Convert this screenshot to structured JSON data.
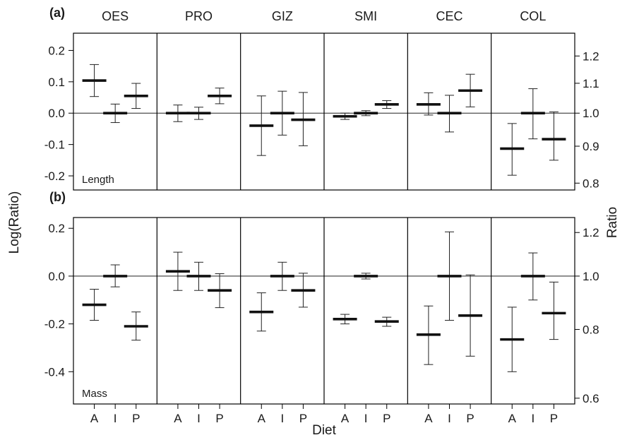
{
  "chart_data": [
    {
      "panel_label": "(a)",
      "type": "errorbar",
      "variable": "Length",
      "groups": [
        "OES",
        "PRO",
        "GIZ",
        "SMI",
        "CEC",
        "COL"
      ],
      "categories": [
        "A",
        "I",
        "P"
      ],
      "ylim": [
        -0.245,
        0.255
      ],
      "y_ticks": [
        "0.2",
        "0.1",
        "0.0",
        "-0.1",
        "-0.2"
      ],
      "y2_ticks": [
        "1.2",
        "1.1",
        "1.0",
        "0.9",
        "0.8"
      ],
      "series": [
        {
          "group": "OES",
          "mean": [
            0.104,
            0.0,
            0.055
          ],
          "lower": [
            0.053,
            -0.03,
            0.015
          ],
          "upper": [
            0.155,
            0.029,
            0.095
          ]
        },
        {
          "group": "PRO",
          "mean": [
            0.0,
            0.0,
            0.055
          ],
          "lower": [
            -0.027,
            -0.02,
            0.03
          ],
          "upper": [
            0.026,
            0.019,
            0.08
          ]
        },
        {
          "group": "GIZ",
          "mean": [
            -0.04,
            0.0,
            -0.021
          ],
          "lower": [
            -0.135,
            -0.07,
            -0.104
          ],
          "upper": [
            0.055,
            0.07,
            0.066
          ]
        },
        {
          "group": "SMI",
          "mean": [
            -0.01,
            0.0,
            0.028
          ],
          "lower": [
            -0.02,
            -0.008,
            0.015
          ],
          "upper": [
            0.0,
            0.008,
            0.04
          ]
        },
        {
          "group": "CEC",
          "mean": [
            0.028,
            0.0,
            0.072
          ],
          "lower": [
            -0.006,
            -0.06,
            0.02
          ],
          "upper": [
            0.065,
            0.057,
            0.124
          ]
        },
        {
          "group": "COL",
          "mean": [
            -0.113,
            0.0,
            -0.083
          ],
          "lower": [
            -0.198,
            -0.082,
            -0.15
          ],
          "upper": [
            -0.033,
            0.078,
            0.004
          ]
        }
      ]
    },
    {
      "panel_label": "(b)",
      "type": "errorbar",
      "variable": "Mass",
      "groups": [
        "OES",
        "PRO",
        "GIZ",
        "SMI",
        "CEC",
        "COL"
      ],
      "categories": [
        "A",
        "I",
        "P"
      ],
      "ylim": [
        -0.535,
        0.245
      ],
      "y_ticks": [
        "0.2",
        "0.0",
        "-0.2",
        "-0.4"
      ],
      "y2_ticks": [
        "1.2",
        "1.0",
        "0.8",
        "0.6"
      ],
      "series": [
        {
          "group": "OES",
          "mean": [
            -0.12,
            0.0,
            -0.21
          ],
          "lower": [
            -0.185,
            -0.045,
            -0.268
          ],
          "upper": [
            -0.055,
            0.047,
            -0.15
          ]
        },
        {
          "group": "PRO",
          "mean": [
            0.02,
            0.0,
            -0.06
          ],
          "lower": [
            -0.06,
            -0.06,
            -0.132
          ],
          "upper": [
            0.1,
            0.058,
            0.01
          ]
        },
        {
          "group": "GIZ",
          "mean": [
            -0.15,
            0.0,
            -0.06
          ],
          "lower": [
            -0.23,
            -0.06,
            -0.13
          ],
          "upper": [
            -0.07,
            0.058,
            0.012
          ]
        },
        {
          "group": "SMI",
          "mean": [
            -0.18,
            0.0,
            -0.19
          ],
          "lower": [
            -0.2,
            -0.012,
            -0.21
          ],
          "upper": [
            -0.16,
            0.012,
            -0.172
          ]
        },
        {
          "group": "CEC",
          "mean": [
            -0.245,
            0.0,
            -0.165
          ],
          "lower": [
            -0.37,
            -0.185,
            -0.335
          ],
          "upper": [
            -0.125,
            0.185,
            0.005
          ]
        },
        {
          "group": "COL",
          "mean": [
            -0.265,
            0.0,
            -0.155
          ],
          "lower": [
            -0.4,
            -0.1,
            -0.265
          ],
          "upper": [
            -0.13,
            0.097,
            -0.025
          ]
        }
      ]
    }
  ],
  "ylabel": "Log(Ratio)",
  "y2label": "Ratio",
  "xlabel": "Diet"
}
